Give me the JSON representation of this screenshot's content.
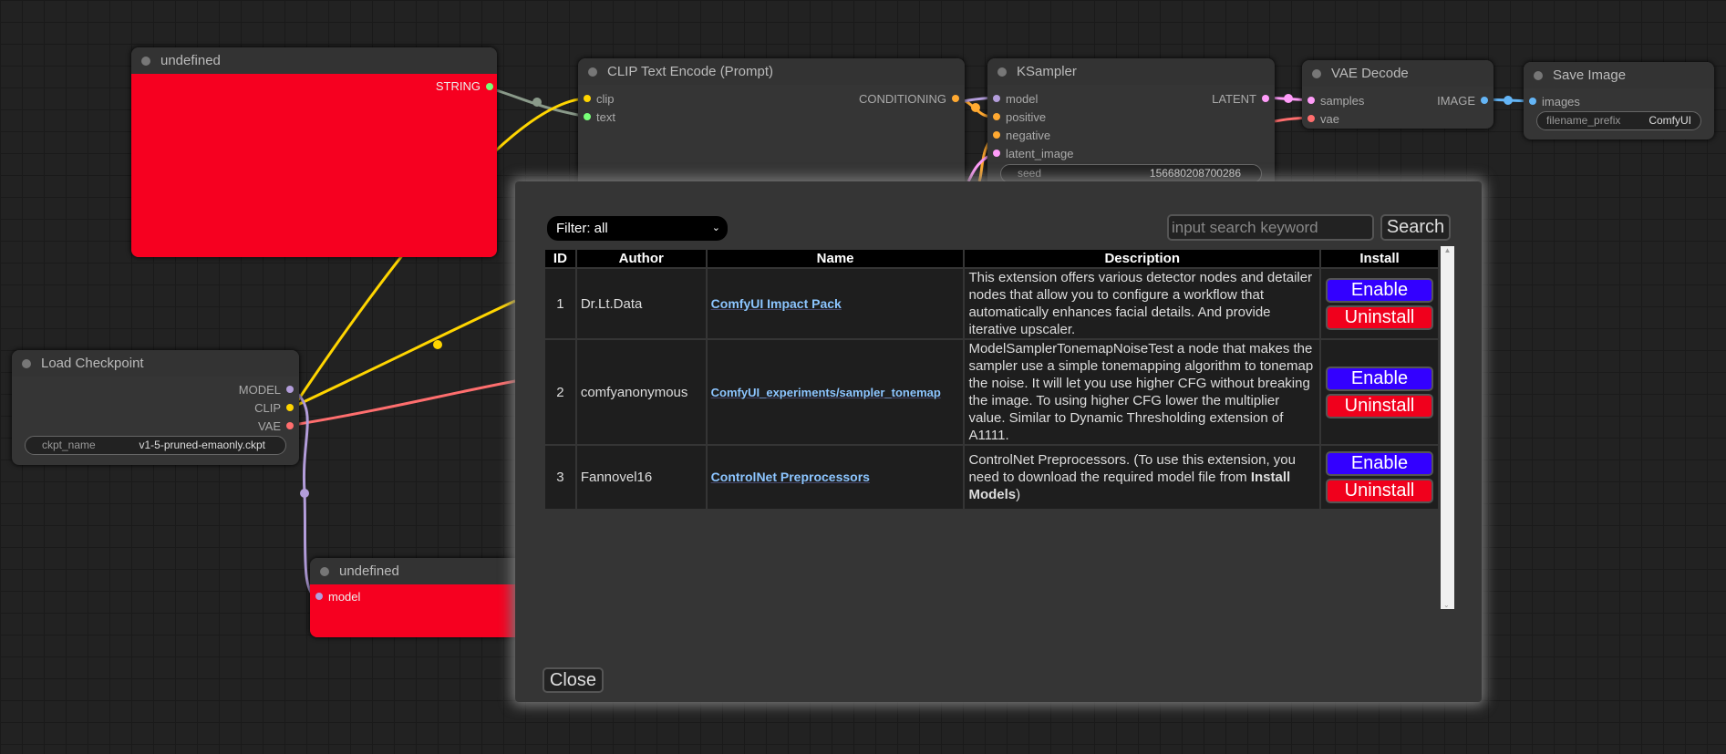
{
  "nodes": {
    "undefined_top": {
      "title": "undefined",
      "output": "STRING"
    },
    "clip_text_encode": {
      "title": "CLIP Text Encode (Prompt)",
      "inputs": [
        "clip",
        "text"
      ],
      "output": "CONDITIONING"
    },
    "ksampler": {
      "title": "KSampler",
      "inputs": [
        "model",
        "positive",
        "negative",
        "latent_image"
      ],
      "output": "LATENT",
      "seed_label": "seed",
      "seed_value": "156680208700286"
    },
    "vae_decode": {
      "title": "VAE Decode",
      "inputs": [
        "samples",
        "vae"
      ],
      "output": "IMAGE"
    },
    "save_image": {
      "title": "Save Image",
      "input": "images",
      "widget_label": "filename_prefix",
      "widget_value": "ComfyUI"
    },
    "load_checkpoint": {
      "title": "Load Checkpoint",
      "outputs": [
        "MODEL",
        "CLIP",
        "VAE"
      ],
      "widget_label": "ckpt_name",
      "widget_value": "v1-5-pruned-emaonly.ckpt"
    },
    "undefined_bottom": {
      "title": "undefined",
      "input": "model"
    }
  },
  "modal": {
    "filter": "Filter: all",
    "search_placeholder": "input search keyword",
    "search_label": "Search",
    "close_label": "Close",
    "columns": [
      "ID",
      "Author",
      "Name",
      "Description",
      "Install"
    ],
    "rows": [
      {
        "id": "1",
        "author": "Dr.Lt.Data",
        "name": "ComfyUI Impact Pack",
        "description": "This extension offers various detector nodes and detailer nodes that allow you to configure a workflow that automatically enhances facial details. And provide iterative upscaler.",
        "enable": "Enable",
        "uninstall": "Uninstall"
      },
      {
        "id": "2",
        "author": "comfyanonymous",
        "name": "ComfyUI_experiments/sampler_tonemap",
        "description": "ModelSamplerTonemapNoiseTest a node that makes the sampler use a simple tonemapping algorithm to tonemap the noise. It will let you use higher CFG without breaking the image. To using higher CFG lower the multiplier value. Similar to Dynamic Thresholding extension of A1111.",
        "enable": "Enable",
        "uninstall": "Uninstall"
      },
      {
        "id": "3",
        "author": "Fannovel16",
        "name": "ControlNet Preprocessors",
        "description": "ControlNet Preprocessors. (To use this extension, you need to download the required model file from ",
        "description_bold": "Install Models",
        "description_end": ")",
        "enable": "Enable",
        "uninstall": "Uninstall"
      }
    ]
  },
  "colors": {
    "enable": "#3300ff",
    "uninstall": "#f0001c",
    "node_red": "#f60020",
    "link": "#8cc5ff"
  }
}
